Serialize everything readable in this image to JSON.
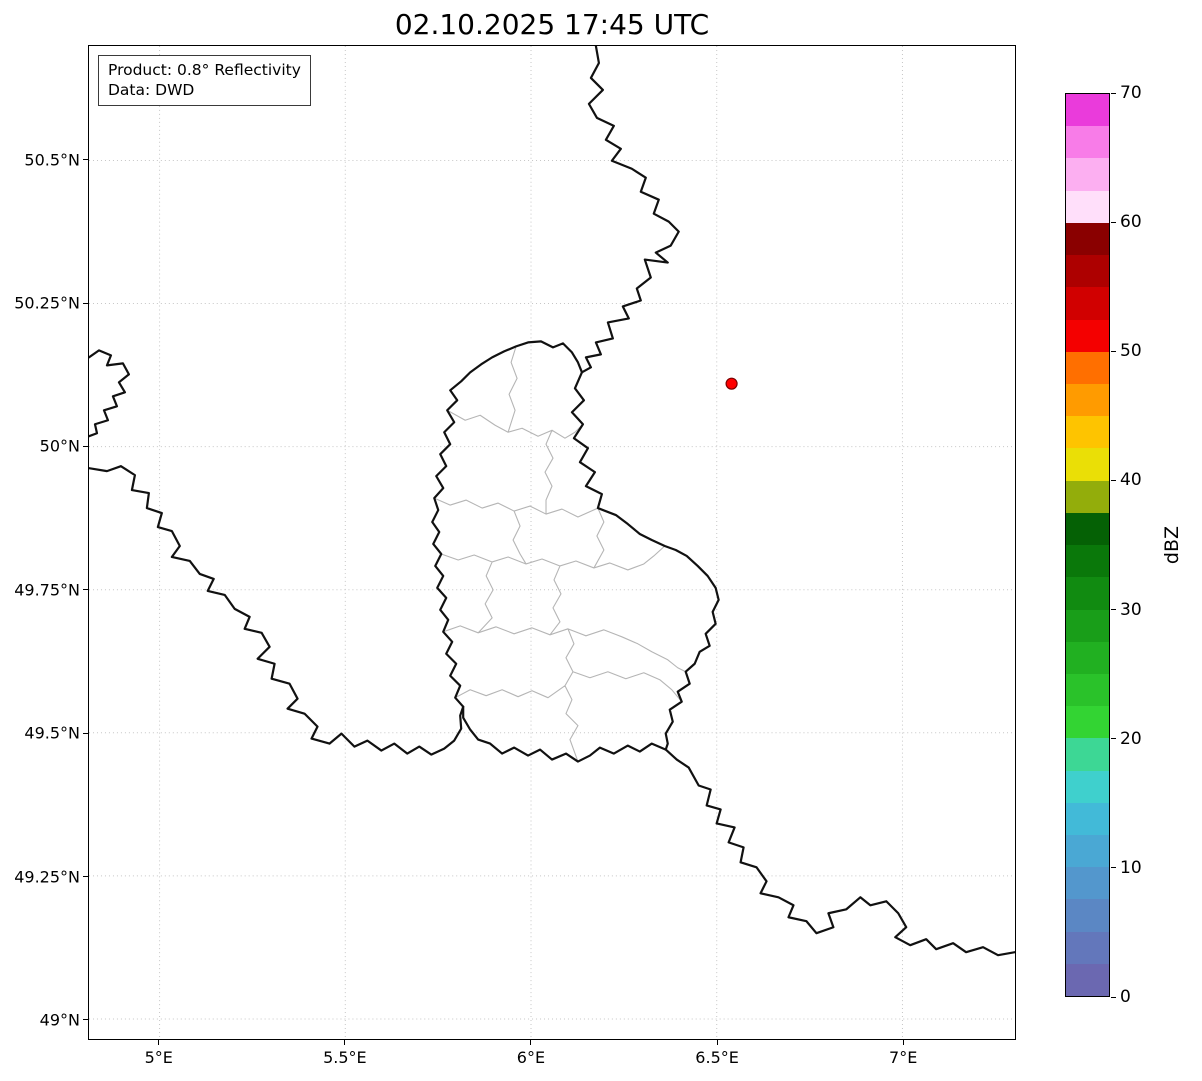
{
  "title": "02.10.2025 17:45 UTC",
  "info_box": {
    "line1": "Product: 0.8° Reflectivity",
    "line2": "Data: DWD"
  },
  "axes": {
    "lon_min": 4.81,
    "lon_max": 7.303,
    "lat_min": 48.965,
    "lat_max": 50.7,
    "xticks": [
      {
        "label": "5°E",
        "lon": 5.0
      },
      {
        "label": "5.5°E",
        "lon": 5.5
      },
      {
        "label": "6°E",
        "lon": 6.0
      },
      {
        "label": "6.5°E",
        "lon": 6.5
      },
      {
        "label": "7°E",
        "lon": 7.0
      }
    ],
    "yticks": [
      {
        "label": "50.5°N",
        "lat": 50.5
      },
      {
        "label": "50.25°N",
        "lat": 50.25
      },
      {
        "label": "50°N",
        "lat": 50.0
      },
      {
        "label": "49.75°N",
        "lat": 49.75
      },
      {
        "label": "49.5°N",
        "lat": 49.5
      },
      {
        "label": "49.25°N",
        "lat": 49.25
      },
      {
        "label": "49°N",
        "lat": 49.0
      }
    ]
  },
  "marker": {
    "lon": 6.54,
    "lat": 50.11,
    "color": "#ff0000"
  },
  "colorbar": {
    "label": "dBZ",
    "min": 0,
    "max": 70,
    "ticks": [
      0,
      10,
      20,
      30,
      40,
      50,
      60,
      70
    ],
    "bands_bottom_to_top": [
      "#6b68b1",
      "#6377bb",
      "#5b87c4",
      "#5397cd",
      "#4aa8d4",
      "#42bad8",
      "#3fd0cd",
      "#3dd795",
      "#33d433",
      "#2ac22a",
      "#21b021",
      "#199e19",
      "#118b11",
      "#0a780a",
      "#056105",
      "#93ad0b",
      "#eadf06",
      "#fec400",
      "#ff9b00",
      "#ff6f00",
      "#f40000",
      "#d10000",
      "#ad0000",
      "#8a0000",
      "#ffdffa",
      "#fcaff1",
      "#f87ce8",
      "#ea3bdb"
    ]
  },
  "map": {
    "country_border_color": "#111111",
    "region_border_color": "#b5b5b5",
    "grid_color": "#c6c6c6"
  }
}
